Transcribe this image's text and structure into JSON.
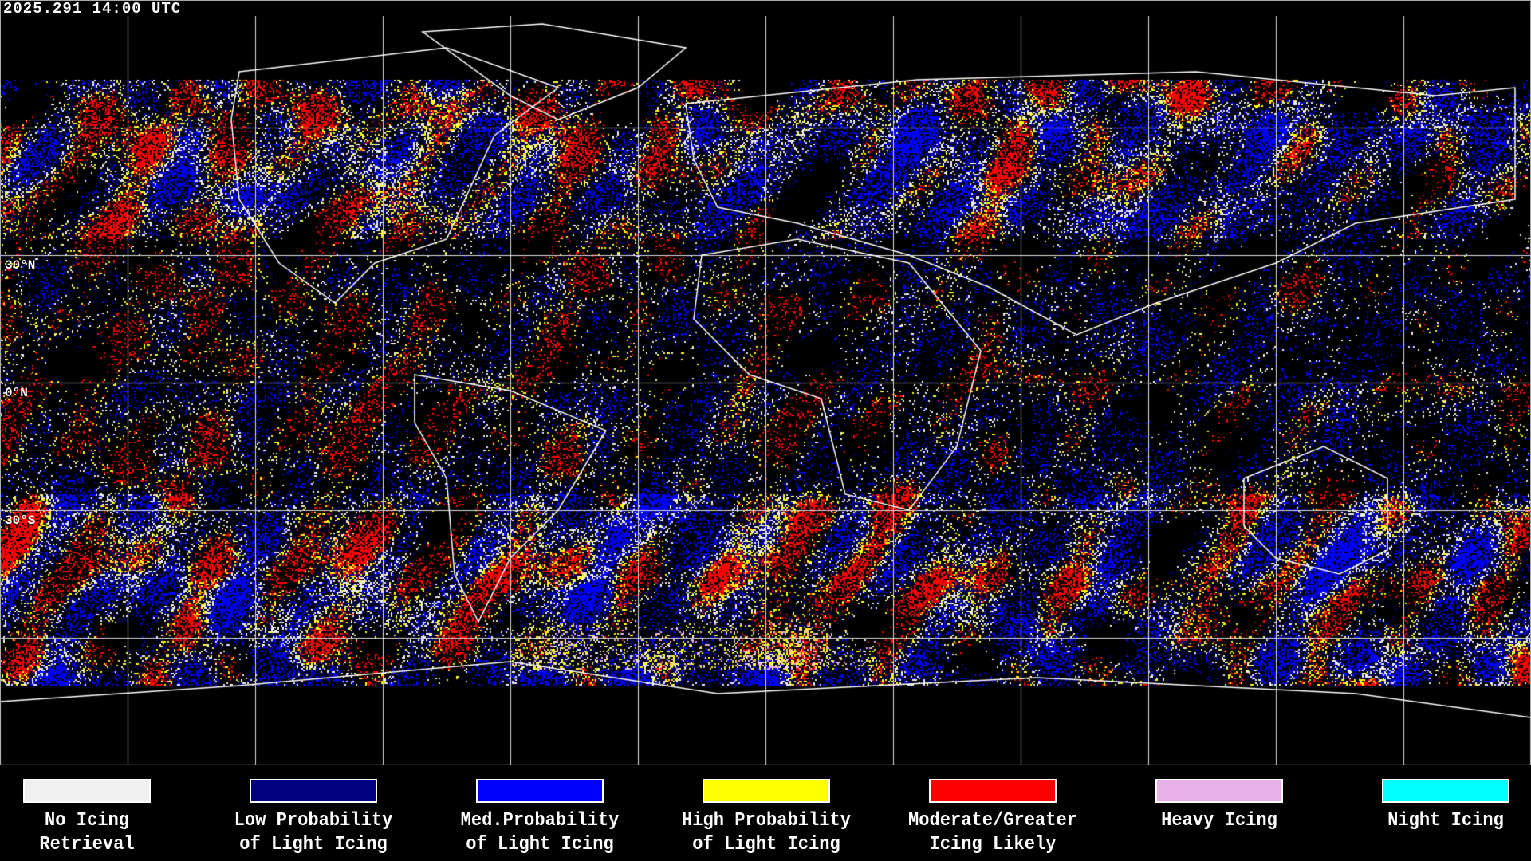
{
  "header": {
    "timestamp": "2025.291 14:00 UTC"
  },
  "map": {
    "lat_labels": [
      "30°N",
      "0°N",
      "30°S"
    ],
    "gridline_spacing_deg": 30,
    "background_color": "#000000",
    "coastline_color": "#ffffff"
  },
  "legend": {
    "items": [
      {
        "line1": "No Icing",
        "line2": "Retrieval",
        "color": "#f0f0f0"
      },
      {
        "line1": "Low Probability",
        "line2": "of Light Icing",
        "color": "#000080"
      },
      {
        "line1": "Med.Probability",
        "line2": "of Light Icing",
        "color": "#0000ff"
      },
      {
        "line1": "High Probability",
        "line2": "of Light Icing",
        "color": "#ffff00"
      },
      {
        "line1": "Moderate/Greater",
        "line2": "Icing Likely",
        "color": "#ff0000"
      },
      {
        "line1": "Heavy Icing",
        "line2": "",
        "color": "#e8b0e8"
      },
      {
        "line1": "Night Icing",
        "line2": "",
        "color": "#00ffff"
      }
    ]
  }
}
